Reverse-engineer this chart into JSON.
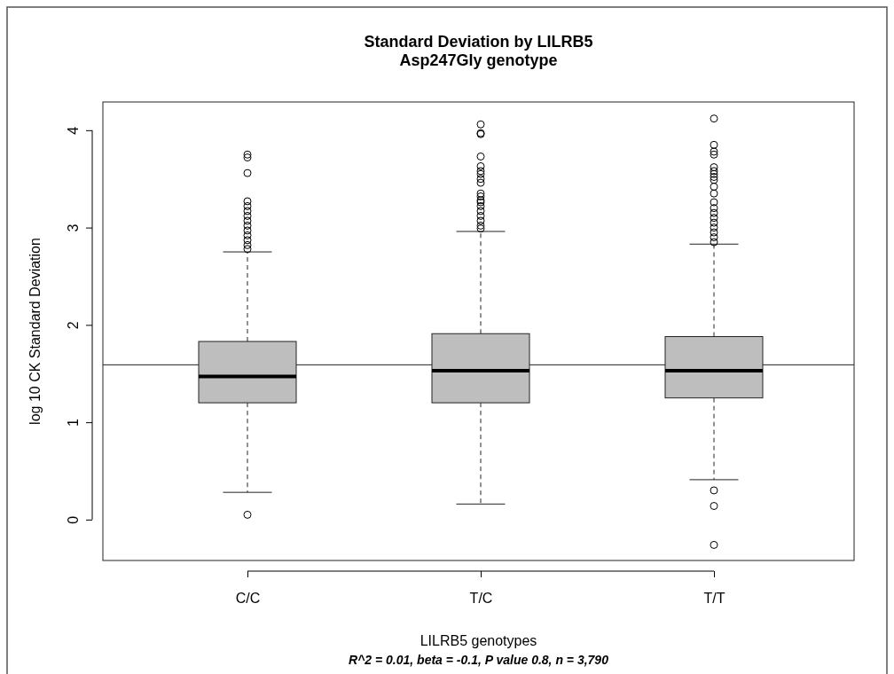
{
  "chart_data": {
    "type": "box",
    "title": "Standard Deviation by LILRB5\nAsp247Gly genotype",
    "xlabel": "LILRB5 genotypes",
    "ylabel": "log 10 CK Standard Deviation",
    "annotations": [
      "R^2 = 0.01, beta = -0.1, P value 0.8, n = 3,790"
    ],
    "categories": [
      "C/C",
      "T/C",
      "T/T"
    ],
    "color": "#bebebe",
    "ylim": [
      -0.42,
      4.29
    ],
    "yticks": [
      0,
      1,
      2,
      3,
      4
    ],
    "ref_lines": [
      {
        "axis": "y",
        "value": 1.59
      }
    ],
    "boxes": [
      {
        "low": 0.28,
        "q1": 1.2,
        "median": 1.47,
        "q3": 1.83,
        "high": 2.75,
        "outliers": [
          0.05,
          3.75,
          3.72,
          3.56,
          3.27,
          3.22,
          3.17,
          3.12,
          3.07,
          3.02,
          2.97,
          2.92,
          2.87,
          2.82,
          2.78
        ]
      },
      {
        "low": 0.16,
        "q1": 1.2,
        "median": 1.53,
        "q3": 1.91,
        "high": 2.96,
        "outliers": [
          4.06,
          3.97,
          3.96,
          3.73,
          3.63,
          3.58,
          3.55,
          3.5,
          3.46,
          3.35,
          3.32,
          3.28,
          3.26,
          3.22,
          3.17,
          3.12,
          3.07,
          3.02,
          2.99
        ]
      },
      {
        "low": 0.41,
        "q1": 1.25,
        "median": 1.53,
        "q3": 1.88,
        "high": 2.83,
        "outliers": [
          0.3,
          0.14,
          -0.26,
          4.12,
          3.85,
          3.78,
          3.75,
          3.62,
          3.58,
          3.55,
          3.52,
          3.49,
          3.42,
          3.35,
          3.26,
          3.2,
          3.15,
          3.1,
          3.05,
          3.0,
          2.95,
          2.9,
          2.85
        ]
      }
    ]
  }
}
